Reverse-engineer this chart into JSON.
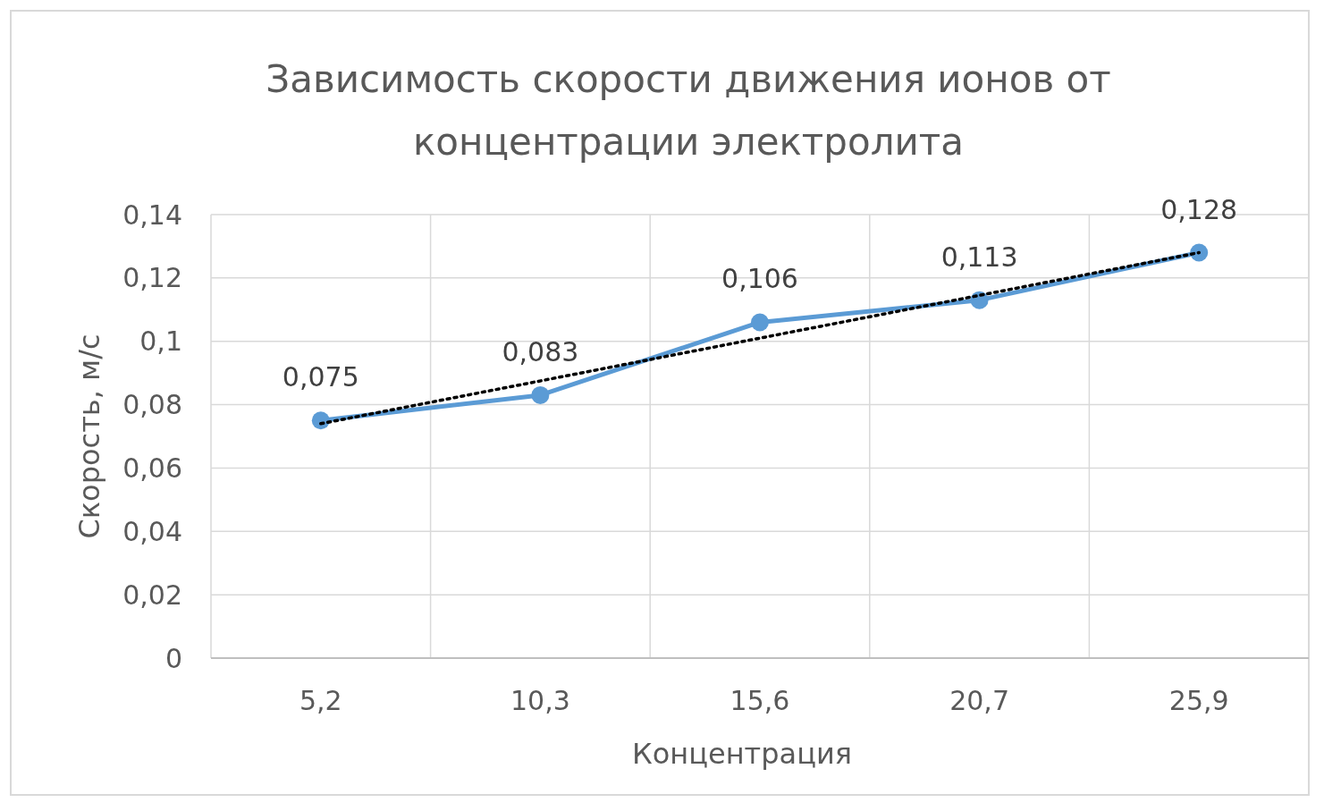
{
  "chart_data": {
    "type": "line",
    "title": "Зависимость скорости движения ионов от концентрации электролита",
    "xlabel": "Концентрация",
    "ylabel": "Скорость, м/с",
    "categories": [
      "5,2",
      "10,3",
      "15,6",
      "20,7",
      "25,9"
    ],
    "series": [
      {
        "color": "#5b9bd5",
        "values": [
          0.075,
          0.083,
          0.106,
          0.113,
          0.128
        ],
        "value_labels": [
          "0,075",
          "0,083",
          "0,106",
          "0,113",
          "0,128"
        ],
        "marker": "circle",
        "line_style": "solid"
      },
      {
        "type": "line",
        "color": "#000000",
        "x": [
          "5,2",
          "25,9"
        ],
        "values": [
          0.074,
          0.128
        ],
        "marker": "none",
        "line_style": "dotted"
      }
    ],
    "ylim": [
      0,
      0.14
    ],
    "yticks": [
      0,
      {
        "value": 0.02,
        "label": "0,02"
      },
      {
        "value": 0.04,
        "label": "0,04"
      },
      {
        "value": 0.06,
        "label": "0,06"
      },
      {
        "value": 0.08,
        "label": "0,08"
      },
      {
        "value": 0.1,
        "label": "0,1"
      },
      {
        "value": 0.12,
        "label": "0,12"
      },
      {
        "value": 0.14,
        "label": "0,14"
      }
    ],
    "grid": true
  }
}
